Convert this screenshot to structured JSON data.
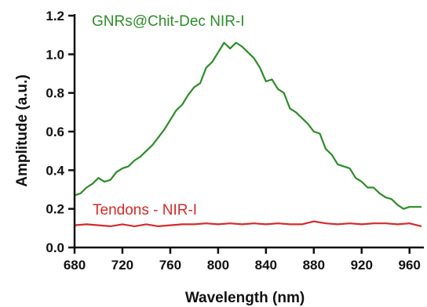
{
  "chart_data": {
    "type": "line",
    "xlabel": "Wavelength (nm)",
    "ylabel": "Amplitude (a.u.)",
    "xlim": [
      680,
      972
    ],
    "ylim": [
      0.0,
      1.2
    ],
    "x_ticks": [
      680,
      720,
      760,
      800,
      840,
      880,
      920,
      960
    ],
    "x_tick_labels": [
      "680",
      "720",
      "760",
      "800",
      "840",
      "880",
      "920",
      "960"
    ],
    "y_ticks": [
      0.0,
      0.2,
      0.4,
      0.6,
      0.8,
      1.0,
      1.2
    ],
    "y_tick_labels": [
      "0.0",
      "0.2",
      "0.4",
      "0.6",
      "0.8",
      "1.0",
      "1.2"
    ],
    "grid": false,
    "legend": "inline labels",
    "series": [
      {
        "name": "GNRs@Chit-Dec NIR-I",
        "color": "#2e8b2a",
        "x": [
          680,
          685,
          690,
          695,
          700,
          705,
          710,
          715,
          720,
          725,
          730,
          735,
          740,
          745,
          750,
          755,
          760,
          765,
          770,
          775,
          780,
          785,
          790,
          795,
          800,
          805,
          810,
          815,
          820,
          825,
          830,
          835,
          840,
          845,
          850,
          855,
          860,
          865,
          870,
          875,
          880,
          885,
          890,
          895,
          900,
          905,
          910,
          915,
          920,
          925,
          930,
          935,
          940,
          945,
          950,
          955,
          960,
          965,
          970
        ],
        "values": [
          0.27,
          0.28,
          0.31,
          0.33,
          0.36,
          0.34,
          0.35,
          0.39,
          0.41,
          0.42,
          0.45,
          0.47,
          0.5,
          0.53,
          0.57,
          0.61,
          0.66,
          0.71,
          0.74,
          0.79,
          0.83,
          0.85,
          0.93,
          0.96,
          1.01,
          1.06,
          1.03,
          1.06,
          1.04,
          1.01,
          0.98,
          0.93,
          0.86,
          0.87,
          0.82,
          0.8,
          0.72,
          0.7,
          0.67,
          0.64,
          0.6,
          0.59,
          0.51,
          0.48,
          0.43,
          0.42,
          0.41,
          0.36,
          0.34,
          0.31,
          0.31,
          0.28,
          0.26,
          0.25,
          0.22,
          0.2,
          0.21,
          0.21,
          0.21
        ]
      },
      {
        "name": "Tendons - NIR-I",
        "color": "#d42a2a",
        "x": [
          680,
          690,
          700,
          710,
          720,
          730,
          740,
          750,
          760,
          770,
          780,
          790,
          800,
          810,
          820,
          830,
          840,
          850,
          860,
          870,
          880,
          890,
          900,
          910,
          920,
          930,
          940,
          950,
          960,
          970
        ],
        "values": [
          0.115,
          0.12,
          0.115,
          0.11,
          0.12,
          0.11,
          0.12,
          0.11,
          0.115,
          0.12,
          0.12,
          0.125,
          0.12,
          0.125,
          0.12,
          0.125,
          0.12,
          0.125,
          0.12,
          0.12,
          0.135,
          0.125,
          0.12,
          0.125,
          0.12,
          0.125,
          0.125,
          0.12,
          0.125,
          0.11
        ]
      }
    ]
  }
}
